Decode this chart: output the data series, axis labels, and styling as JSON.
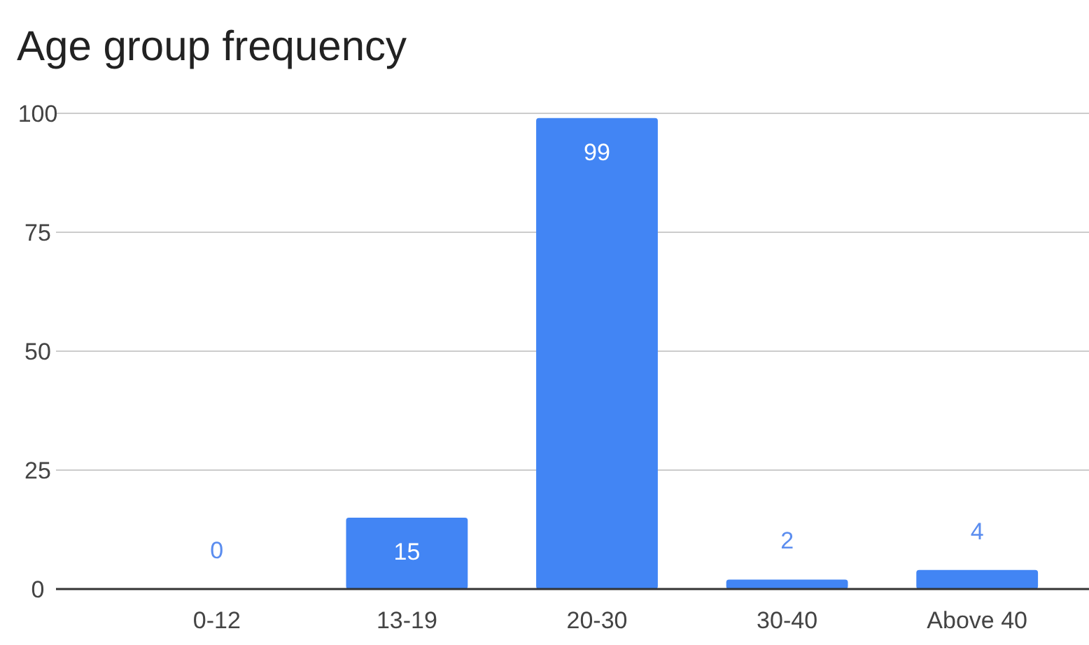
{
  "chart_data": {
    "type": "bar",
    "title": "Age group frequency",
    "categories": [
      "0-12",
      "13-19",
      "20-30",
      "30-40",
      "Above 40"
    ],
    "values": [
      0,
      15,
      99,
      2,
      4
    ],
    "color": "#4285f4",
    "ylim": [
      0,
      100
    ],
    "yticks": [
      0,
      25,
      50,
      75,
      100
    ],
    "grid": "y",
    "data_labels": true
  }
}
